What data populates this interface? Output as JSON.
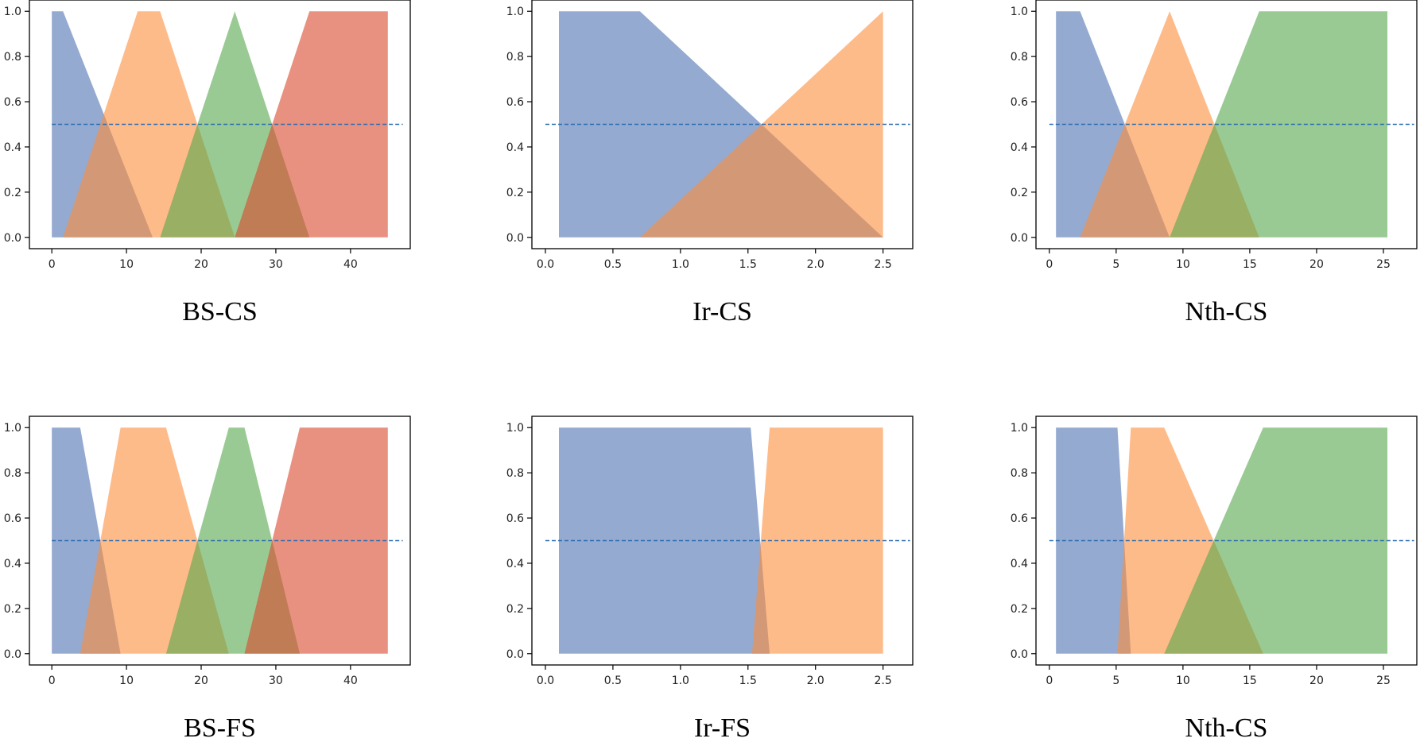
{
  "colors": {
    "blue": "#4c72b0",
    "orange": "#fd8d3c",
    "green": "#55a64b",
    "red": "#d9482b",
    "threshold_line": "#2b6cb0",
    "axes": "#000000"
  },
  "chart_data": [
    {
      "type": "area",
      "caption": "BS-CS",
      "xlim": [
        -3,
        48
      ],
      "ylim": [
        -0.05,
        1.05
      ],
      "xticks": [
        0,
        10,
        20,
        30,
        40
      ],
      "xtick_labels": [
        "0",
        "10",
        "20",
        "30",
        "40"
      ],
      "yticks": [
        0.0,
        0.2,
        0.4,
        0.6,
        0.8,
        1.0
      ],
      "ytick_labels": [
        "0.0",
        "0.2",
        "0.4",
        "0.6",
        "0.8",
        "1.0"
      ],
      "threshold": {
        "y": 0.5,
        "x_range": [
          0,
          47
        ]
      },
      "series": [
        {
          "color": "blue",
          "x": [
            0,
            1.5,
            13.5
          ],
          "y": [
            1,
            1,
            0
          ]
        },
        {
          "color": "orange",
          "x": [
            1.5,
            11.5,
            14.5,
            24.5
          ],
          "y": [
            0,
            1,
            1,
            0
          ]
        },
        {
          "color": "green",
          "x": [
            14.5,
            24.5,
            34.5
          ],
          "y": [
            0,
            1,
            0
          ]
        },
        {
          "color": "red",
          "x": [
            24.5,
            34.5,
            45
          ],
          "y": [
            0,
            1,
            1
          ]
        }
      ]
    },
    {
      "type": "area",
      "caption": "Ir-CS",
      "xlim": [
        -0.1,
        2.72
      ],
      "ylim": [
        -0.05,
        1.05
      ],
      "xticks": [
        0.0,
        0.5,
        1.0,
        1.5,
        2.0,
        2.5
      ],
      "xtick_labels": [
        "0.0",
        "0.5",
        "1.0",
        "1.5",
        "2.0",
        "2.5"
      ],
      "yticks": [
        0.0,
        0.2,
        0.4,
        0.6,
        0.8,
        1.0
      ],
      "ytick_labels": [
        "0.0",
        "0.2",
        "0.4",
        "0.6",
        "0.8",
        "1.0"
      ],
      "threshold": {
        "y": 0.5,
        "x_range": [
          0,
          2.7
        ]
      },
      "series": [
        {
          "color": "blue",
          "x": [
            0.1,
            0.7,
            2.5
          ],
          "y": [
            1,
            1,
            0
          ]
        },
        {
          "color": "orange",
          "x": [
            0.7,
            2.5
          ],
          "y": [
            0,
            1
          ]
        }
      ]
    },
    {
      "type": "area",
      "caption": "Nth-CS",
      "xlim": [
        -1,
        27.5
      ],
      "ylim": [
        -0.05,
        1.05
      ],
      "xticks": [
        0,
        5,
        10,
        15,
        20,
        25
      ],
      "xtick_labels": [
        "0",
        "5",
        "10",
        "15",
        "20",
        "25"
      ],
      "yticks": [
        0.0,
        0.2,
        0.4,
        0.6,
        0.8,
        1.0
      ],
      "ytick_labels": [
        "0.0",
        "0.2",
        "0.4",
        "0.6",
        "0.8",
        "1.0"
      ],
      "threshold": {
        "y": 0.5,
        "x_range": [
          0,
          27.3
        ]
      },
      "series": [
        {
          "color": "blue",
          "x": [
            0.5,
            2.3,
            9
          ],
          "y": [
            1,
            1,
            0
          ]
        },
        {
          "color": "orange",
          "x": [
            2.3,
            9,
            15.7
          ],
          "y": [
            0,
            1,
            0
          ]
        },
        {
          "color": "green",
          "x": [
            9,
            15.7,
            25.3
          ],
          "y": [
            0,
            1,
            1
          ]
        }
      ]
    },
    {
      "type": "area",
      "caption": "BS-FS",
      "xlim": [
        -3,
        48
      ],
      "ylim": [
        -0.05,
        1.05
      ],
      "xticks": [
        0,
        10,
        20,
        30,
        40
      ],
      "xtick_labels": [
        "0",
        "10",
        "20",
        "30",
        "40"
      ],
      "yticks": [
        0.0,
        0.2,
        0.4,
        0.6,
        0.8,
        1.0
      ],
      "ytick_labels": [
        "0.0",
        "0.2",
        "0.4",
        "0.6",
        "0.8",
        "1.0"
      ],
      "threshold": {
        "y": 0.5,
        "x_range": [
          0,
          47
        ]
      },
      "series": [
        {
          "color": "blue",
          "x": [
            0,
            3.8,
            9.2
          ],
          "y": [
            1,
            1,
            0
          ]
        },
        {
          "color": "orange",
          "x": [
            3.8,
            9.2,
            15.3,
            23.7
          ],
          "y": [
            0,
            1,
            1,
            0
          ]
        },
        {
          "color": "green",
          "x": [
            15.3,
            23.7,
            25.8,
            33.2
          ],
          "y": [
            0,
            1,
            1,
            0
          ]
        },
        {
          "color": "red",
          "x": [
            25.8,
            33.2,
            45
          ],
          "y": [
            0,
            1,
            1
          ]
        }
      ]
    },
    {
      "type": "area",
      "caption": "Ir-FS",
      "xlim": [
        -0.1,
        2.72
      ],
      "ylim": [
        -0.05,
        1.05
      ],
      "xticks": [
        0.0,
        0.5,
        1.0,
        1.5,
        2.0,
        2.5
      ],
      "xtick_labels": [
        "0.0",
        "0.5",
        "1.0",
        "1.5",
        "2.0",
        "2.5"
      ],
      "yticks": [
        0.0,
        0.2,
        0.4,
        0.6,
        0.8,
        1.0
      ],
      "ytick_labels": [
        "0.0",
        "0.2",
        "0.4",
        "0.6",
        "0.8",
        "1.0"
      ],
      "threshold": {
        "y": 0.5,
        "x_range": [
          0,
          2.7
        ]
      },
      "series": [
        {
          "color": "blue",
          "x": [
            0.1,
            1.52,
            1.66
          ],
          "y": [
            1,
            1,
            0
          ]
        },
        {
          "color": "orange",
          "x": [
            1.53,
            1.66,
            2.5
          ],
          "y": [
            0,
            1,
            1
          ]
        }
      ]
    },
    {
      "type": "area",
      "caption": "Nth-CS",
      "xlim": [
        -1,
        27.5
      ],
      "ylim": [
        -0.05,
        1.05
      ],
      "xticks": [
        0,
        5,
        10,
        15,
        20,
        25
      ],
      "xtick_labels": [
        "0",
        "5",
        "10",
        "15",
        "20",
        "25"
      ],
      "yticks": [
        0.0,
        0.2,
        0.4,
        0.6,
        0.8,
        1.0
      ],
      "ytick_labels": [
        "0.0",
        "0.2",
        "0.4",
        "0.6",
        "0.8",
        "1.0"
      ],
      "threshold": {
        "y": 0.5,
        "x_range": [
          0,
          27.3
        ]
      },
      "series": [
        {
          "color": "blue",
          "x": [
            0.5,
            5.1,
            6.1
          ],
          "y": [
            1,
            1,
            0
          ]
        },
        {
          "color": "orange",
          "x": [
            5.1,
            6.1,
            8.6,
            16
          ],
          "y": [
            0,
            1,
            1,
            0
          ]
        },
        {
          "color": "green",
          "x": [
            8.6,
            16,
            25.3
          ],
          "y": [
            0,
            1,
            1
          ]
        }
      ]
    }
  ]
}
